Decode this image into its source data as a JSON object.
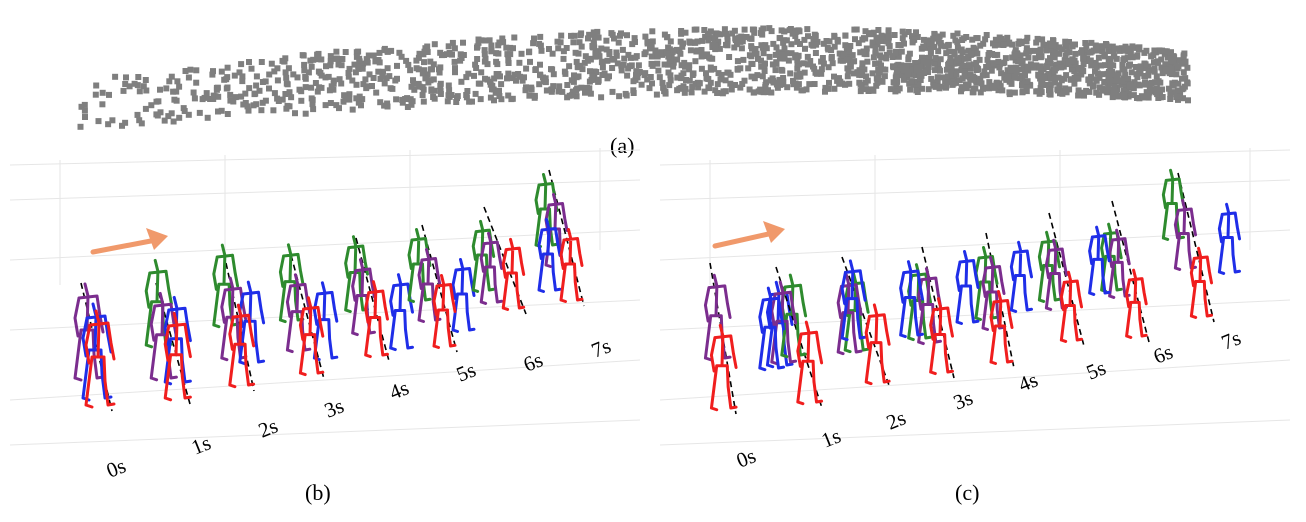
{
  "figure": {
    "panels": [
      {
        "id": "a",
        "caption": "(a)"
      },
      {
        "id": "b",
        "caption": "(b)",
        "time_labels": [
          "0s",
          "1s",
          "2s",
          "3s",
          "4s",
          "5s",
          "6s",
          "7s"
        ]
      },
      {
        "id": "c",
        "caption": "(c)",
        "time_labels": [
          "0s",
          "1s",
          "2s",
          "3s",
          "4s",
          "5s",
          "6s",
          "7s"
        ]
      }
    ],
    "colors": {
      "points": "#7f7f7f",
      "arrow": "#f0996b",
      "grid": "#e6e6e6",
      "skeletons": [
        "#2e8b2e",
        "#7b2d8e",
        "#1f2ee8",
        "#f01e1e"
      ],
      "trajectory": "#000000"
    }
  }
}
